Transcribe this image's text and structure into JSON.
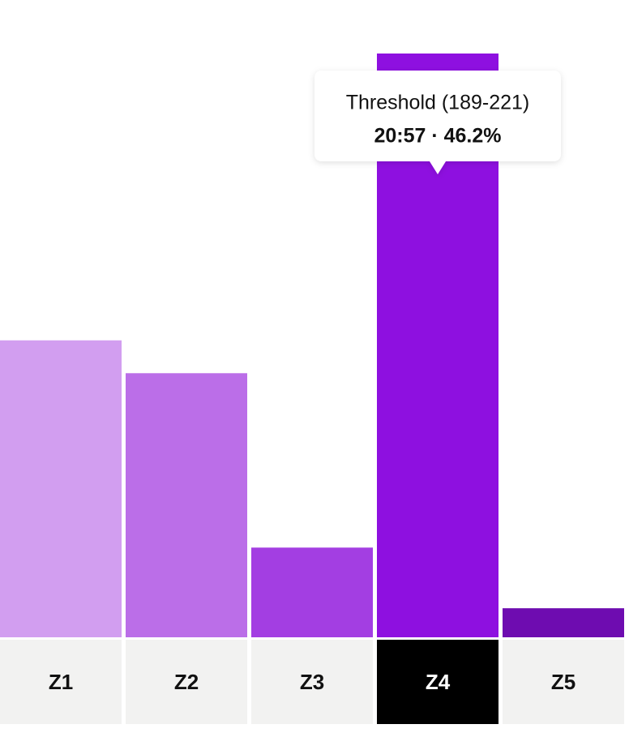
{
  "chart_data": {
    "type": "bar",
    "categories": [
      "Z1",
      "Z2",
      "Z3",
      "Z4",
      "Z5"
    ],
    "values": [
      23.5,
      20.9,
      7.1,
      46.2,
      2.3
    ],
    "colors": [
      "#d29ef0",
      "#bb6ee8",
      "#a33ee2",
      "#8e10e0",
      "#6e0cb0"
    ],
    "highlight": "Z4",
    "tooltip": {
      "label": "Threshold (189-221)",
      "detail": "20:57 · 46.2%"
    }
  }
}
